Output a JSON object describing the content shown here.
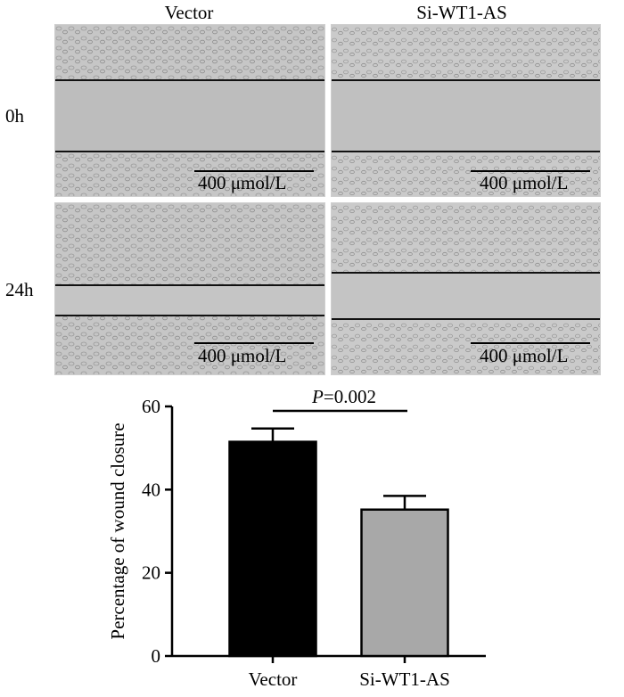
{
  "micrographs": {
    "columns": [
      "Vector",
      "Si-WT1-AS"
    ],
    "rows": [
      "0h",
      "24h"
    ],
    "scale_bar_label": "400 μmol/L"
  },
  "chart_data": {
    "type": "bar",
    "categories": [
      "Vector",
      "Si-WT1-AS"
    ],
    "values": [
      51.5,
      35.2
    ],
    "errors": [
      3.2,
      3.3
    ],
    "bar_colors": [
      "#000000",
      "#a8a8a8"
    ],
    "ylabel": "Percentage of wound closure",
    "ylim": [
      0,
      60
    ],
    "yticks": [
      0,
      20,
      40,
      60
    ],
    "annotation": {
      "p_symbol": "P",
      "p_value": "=0.002"
    }
  }
}
